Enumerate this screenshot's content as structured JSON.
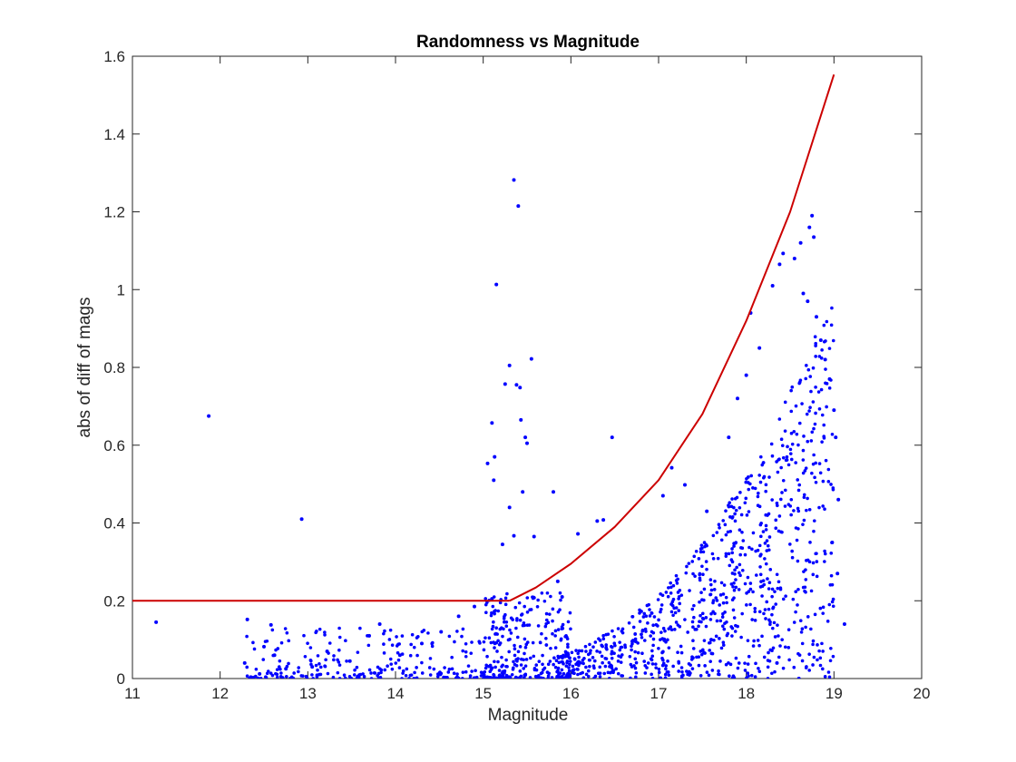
{
  "chart_data": {
    "type": "scatter",
    "title": "Randomness vs Magnitude",
    "xlabel": "Magnitude",
    "ylabel": "abs of diff of mags",
    "xlim": [
      11,
      20
    ],
    "ylim": [
      0,
      1.6
    ],
    "xticks": [
      "11",
      "12",
      "13",
      "14",
      "15",
      "16",
      "17",
      "18",
      "19",
      "20"
    ],
    "yticks": [
      "0",
      "0.2",
      "0.4",
      "0.6",
      "0.8",
      "1",
      "1.2",
      "1.4",
      "1.6"
    ],
    "grid": false,
    "colors": {
      "points": "#0000ff",
      "curve": "#cc0000",
      "axes": "#262626"
    },
    "series": [
      {
        "kind": "points",
        "points": [
          [
            11.27,
            0.145
          ],
          [
            11.87,
            0.675
          ],
          [
            12.31,
            0.152
          ],
          [
            12.5,
            0.082
          ],
          [
            12.58,
            0.138
          ],
          [
            12.93,
            0.41
          ],
          [
            12.28,
            0.04
          ],
          [
            12.45,
            0.012
          ],
          [
            12.62,
            0.06
          ],
          [
            12.75,
            0.025
          ],
          [
            13.05,
            0.03
          ],
          [
            13.22,
            0.07
          ],
          [
            13.48,
            0.045
          ],
          [
            13.7,
            0.11
          ],
          [
            13.82,
            0.14
          ],
          [
            14.05,
            0.06
          ],
          [
            14.3,
            0.09
          ],
          [
            14.52,
            0.12
          ],
          [
            14.72,
            0.16
          ],
          [
            14.9,
            0.185
          ],
          [
            15.1,
            0.205
          ],
          [
            15.15,
            1.013
          ],
          [
            15.3,
            0.805
          ],
          [
            15.35,
            1.282
          ],
          [
            15.4,
            1.215
          ],
          [
            15.25,
            0.757
          ],
          [
            15.38,
            0.755
          ],
          [
            15.42,
            0.748
          ],
          [
            15.1,
            0.657
          ],
          [
            15.43,
            0.665
          ],
          [
            15.48,
            0.62
          ],
          [
            15.5,
            0.605
          ],
          [
            15.13,
            0.57
          ],
          [
            15.05,
            0.553
          ],
          [
            15.12,
            0.51
          ],
          [
            15.55,
            0.822
          ],
          [
            15.3,
            0.44
          ],
          [
            15.45,
            0.48
          ],
          [
            15.8,
            0.48
          ],
          [
            15.35,
            0.367
          ],
          [
            15.58,
            0.365
          ],
          [
            16.08,
            0.372
          ],
          [
            15.22,
            0.345
          ],
          [
            16.3,
            0.405
          ],
          [
            16.37,
            0.408
          ],
          [
            16.47,
            0.62
          ],
          [
            15.85,
            0.25
          ],
          [
            15.9,
            0.21
          ],
          [
            17.05,
            0.47
          ],
          [
            17.15,
            0.542
          ],
          [
            17.3,
            0.498
          ],
          [
            17.55,
            0.43
          ],
          [
            17.8,
            0.62
          ],
          [
            17.9,
            0.72
          ],
          [
            18.0,
            0.78
          ],
          [
            18.05,
            0.94
          ],
          [
            18.15,
            0.85
          ],
          [
            18.3,
            1.01
          ],
          [
            18.38,
            1.065
          ],
          [
            18.42,
            1.093
          ],
          [
            18.55,
            1.08
          ],
          [
            18.62,
            1.12
          ],
          [
            18.75,
            1.19
          ],
          [
            18.72,
            1.16
          ],
          [
            18.77,
            1.135
          ],
          [
            18.65,
            0.99
          ],
          [
            18.7,
            0.97
          ],
          [
            18.8,
            0.93
          ],
          [
            18.85,
            0.87
          ],
          [
            18.9,
            0.82
          ],
          [
            18.95,
            0.77
          ],
          [
            19.0,
            0.69
          ],
          [
            19.02,
            0.62
          ],
          [
            19.05,
            0.46
          ],
          [
            19.04,
            0.27
          ],
          [
            19.12,
            0.14
          ],
          [
            18.98,
            0.35
          ],
          [
            18.6,
            0.0
          ],
          [
            18.35,
            0.04
          ],
          [
            17.6,
            0.1
          ]
        ]
      },
      {
        "kind": "curve",
        "segments": [
          {
            "x": [
              11,
              15.3
            ],
            "y": [
              0.2,
              0.2
            ]
          },
          {
            "x": [
              15.3,
              15.6,
              16.0,
              16.5,
              17.0,
              17.5,
              18.0,
              18.5,
              19.0
            ],
            "y": [
              0.2,
              0.234,
              0.295,
              0.39,
              0.51,
              0.68,
              0.92,
              1.2,
              1.553
            ]
          }
        ]
      }
    ]
  }
}
